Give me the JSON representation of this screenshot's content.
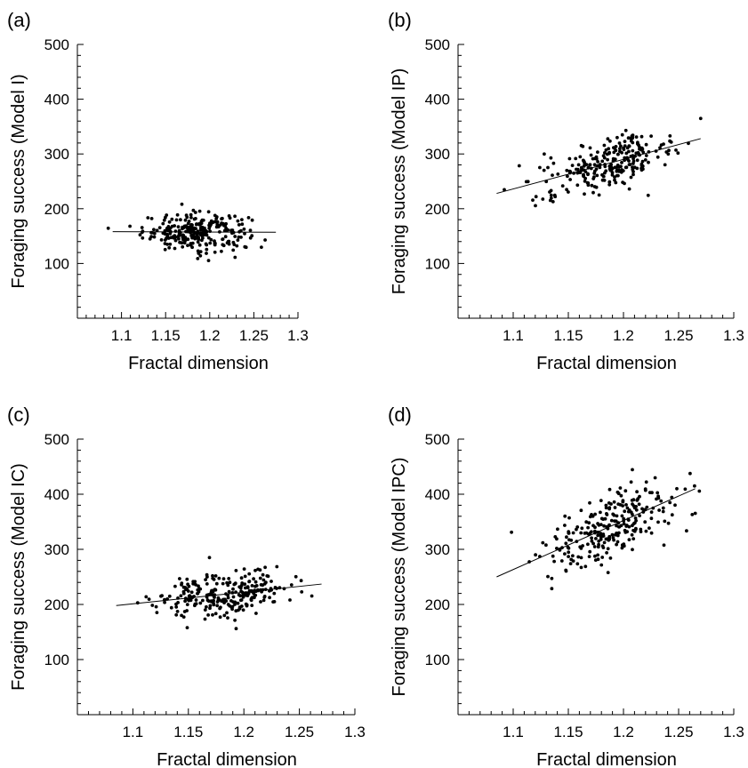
{
  "figure": {
    "panels_label": "Scatter plots of foraging success vs fractal dimension"
  },
  "chart_data": [
    {
      "type": "scatter",
      "panel_label": "(a)",
      "xlabel": "Fractal dimension",
      "ylabel": "Foraging success (Model I)",
      "xlim": [
        1.05,
        1.3
      ],
      "ylim": [
        0,
        500
      ],
      "xticks": [
        "1.1",
        "1.15",
        "1.2",
        "1.25",
        "1.3"
      ],
      "xtick_values": [
        1.1,
        1.15,
        1.2,
        1.25,
        1.3
      ],
      "yticks": [
        "100",
        "200",
        "300",
        "400",
        "500"
      ],
      "ytick_values": [
        100,
        200,
        300,
        400,
        500
      ],
      "n_points": 260,
      "x_range": [
        1.085,
        1.275
      ],
      "x_center": 1.185,
      "x_spread": 0.03,
      "y_noise": 17,
      "fit_line": {
        "x": [
          1.09,
          1.275
        ],
        "y": [
          158,
          157
        ]
      },
      "grid": false
    },
    {
      "type": "scatter",
      "panel_label": "(b)",
      "xlabel": "Fractal dimension",
      "ylabel": "Foraging success (Model IP)",
      "xlim": [
        1.05,
        1.3
      ],
      "ylim": [
        0,
        500
      ],
      "xticks": [
        "1.1",
        "1.15",
        "1.2",
        "1.25",
        "1.3"
      ],
      "xtick_values": [
        1.1,
        1.15,
        1.2,
        1.25,
        1.3
      ],
      "yticks": [
        "100",
        "200",
        "300",
        "400",
        "500"
      ],
      "ytick_values": [
        100,
        200,
        300,
        400,
        500
      ],
      "n_points": 260,
      "x_range": [
        1.085,
        1.27
      ],
      "x_center": 1.185,
      "x_spread": 0.03,
      "y_noise": 22,
      "fit_line": {
        "x": [
          1.085,
          1.27
        ],
        "y": [
          228,
          328
        ]
      },
      "grid": false
    },
    {
      "type": "scatter",
      "panel_label": "(c)",
      "xlabel": "Fractal dimension",
      "ylabel": "Foraging success (Model IC)",
      "xlim": [
        1.05,
        1.3
      ],
      "ylim": [
        0,
        500
      ],
      "xticks": [
        "1.1",
        "1.15",
        "1.2",
        "1.25",
        "1.3"
      ],
      "xtick_values": [
        1.1,
        1.15,
        1.2,
        1.25,
        1.3
      ],
      "yticks": [
        "100",
        "200",
        "300",
        "400",
        "500"
      ],
      "ytick_values": [
        100,
        200,
        300,
        400,
        500
      ],
      "n_points": 260,
      "x_range": [
        1.085,
        1.275
      ],
      "x_center": 1.185,
      "x_spread": 0.03,
      "y_noise": 20,
      "fit_line": {
        "x": [
          1.085,
          1.27
        ],
        "y": [
          198,
          237
        ]
      },
      "grid": false
    },
    {
      "type": "scatter",
      "panel_label": "(d)",
      "xlabel": "Fractal dimension",
      "ylabel": "Foraging success (Model IPC)",
      "xlim": [
        1.05,
        1.3
      ],
      "ylim": [
        0,
        500
      ],
      "xticks": [
        "1.1",
        "1.15",
        "1.2",
        "1.25",
        "1.3"
      ],
      "xtick_values": [
        1.1,
        1.15,
        1.2,
        1.25,
        1.3
      ],
      "yticks": [
        "100",
        "200",
        "300",
        "400",
        "500"
      ],
      "ytick_values": [
        100,
        200,
        300,
        400,
        500
      ],
      "n_points": 260,
      "x_range": [
        1.085,
        1.27
      ],
      "x_center": 1.19,
      "x_spread": 0.032,
      "y_noise": 32,
      "fit_line": {
        "x": [
          1.085,
          1.265
        ],
        "y": [
          250,
          410
        ]
      },
      "grid": false
    }
  ]
}
